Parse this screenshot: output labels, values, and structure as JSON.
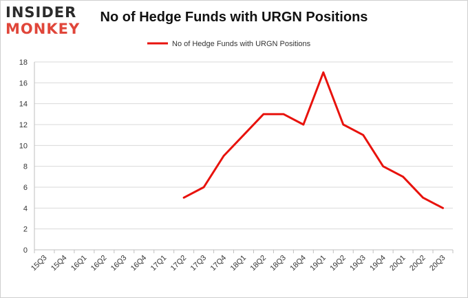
{
  "logo": {
    "line1": "INSIDER",
    "line2": "MONKEY"
  },
  "chart_data": {
    "type": "line",
    "title": "No of Hedge Funds with URGN Positions",
    "xlabel": "",
    "ylabel": "",
    "categories": [
      "15Q3",
      "15Q4",
      "16Q1",
      "16Q2",
      "16Q3",
      "16Q4",
      "17Q1",
      "17Q2",
      "17Q3",
      "17Q4",
      "18Q1",
      "18Q2",
      "18Q3",
      "18Q4",
      "19Q1",
      "19Q2",
      "19Q3",
      "19Q4",
      "20Q1",
      "20Q2",
      "20Q3"
    ],
    "series": [
      {
        "name": "No of Hedge Funds with URGN Positions",
        "values": [
          null,
          null,
          null,
          null,
          null,
          null,
          null,
          5,
          6,
          9,
          11,
          13,
          13,
          12,
          17,
          12,
          11,
          8,
          7,
          5,
          4
        ],
        "color": "#e8120c"
      }
    ],
    "ylim": [
      0,
      18
    ],
    "yticks": [
      0,
      2,
      4,
      6,
      8,
      10,
      12,
      14,
      16,
      18
    ],
    "grid": true,
    "legend": "top-center"
  }
}
